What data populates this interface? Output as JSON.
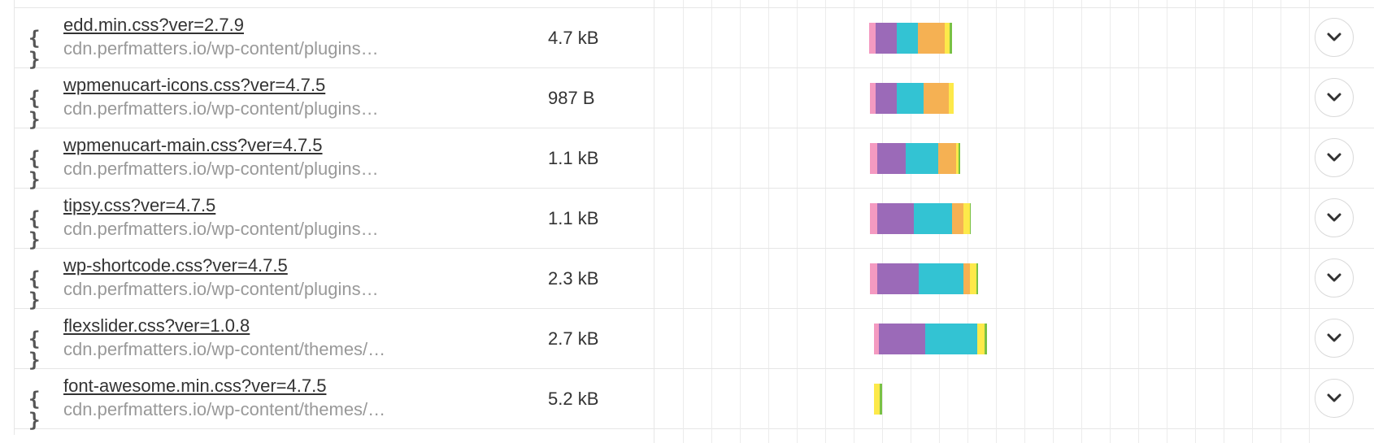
{
  "colors": {
    "pink": "#f49ac1",
    "purple": "#9b6ab8",
    "teal": "#33c3d3",
    "orange": "#f5b153",
    "yellow": "#fde94a",
    "green": "#79c143"
  },
  "rows": [
    {
      "name": "edd.min.css?ver=2.7.9",
      "url": "cdn.perfmatters.io/wp-content/plugins…",
      "size": "4.7 kB",
      "icon": "css-braces-icon"
    },
    {
      "name": "wpmenucart-icons.css?ver=4.7.5",
      "url": "cdn.perfmatters.io/wp-content/plugins…",
      "size": "987 B",
      "icon": "css-braces-icon"
    },
    {
      "name": "wpmenucart-main.css?ver=4.7.5",
      "url": "cdn.perfmatters.io/wp-content/plugins…",
      "size": "1.1 kB",
      "icon": "css-braces-icon"
    },
    {
      "name": "tipsy.css?ver=4.7.5",
      "url": "cdn.perfmatters.io/wp-content/plugins…",
      "size": "1.1 kB",
      "icon": "css-braces-icon"
    },
    {
      "name": "wp-shortcode.css?ver=4.7.5",
      "url": "cdn.perfmatters.io/wp-content/plugins…",
      "size": "2.3 kB",
      "icon": "css-braces-icon"
    },
    {
      "name": "flexslider.css?ver=1.0.8",
      "url": "cdn.perfmatters.io/wp-content/themes/…",
      "size": "2.7 kB",
      "icon": "css-braces-icon"
    },
    {
      "name": "font-awesome.min.css?ver=4.7.5",
      "url": "cdn.perfmatters.io/wp-content/themes/…",
      "size": "5.2 kB",
      "icon": "css-braces-icon"
    }
  ],
  "icons": {
    "braces": "{ }",
    "expand": "chevron-down-icon"
  }
}
